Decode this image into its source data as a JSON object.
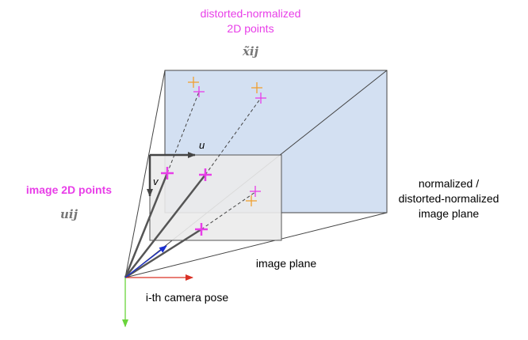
{
  "labels": {
    "distorted_title_line1": "distorted-normalized",
    "distorted_title_line2": "2D points",
    "distorted_symbol": "x̃ij",
    "image_points_title": "image 2D points",
    "image_points_symbol": "uij",
    "axis_u": "u",
    "axis_v": "v",
    "normalized_plane_line1": "normalized /",
    "normalized_plane_line2": "distorted-normalized",
    "normalized_plane_line3": "image plane",
    "image_plane": "image plane",
    "camera_pose": "i-th camera pose"
  },
  "colors": {
    "highlight": "#e83ee8",
    "distorted_marker": "#f0a030",
    "normalized_plane_fill": "#d3e0f2",
    "image_plane_fill": "#ebebeb",
    "x_axis": "#d93025",
    "y_axis": "#6ad43c",
    "z_axis": "#1a2fd0",
    "ray": "#555555",
    "frame_line": "#444444"
  },
  "icons": {
    "image_point_marker": "plus-marker",
    "distorted_point_marker": "plus-marker"
  }
}
